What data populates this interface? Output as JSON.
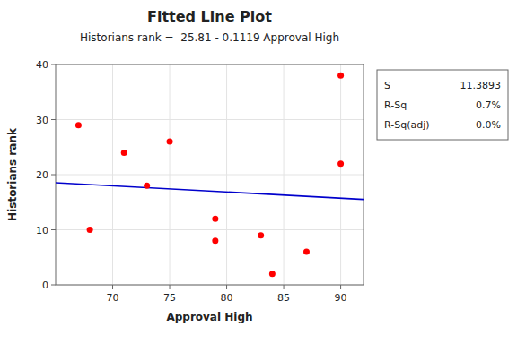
{
  "chart_data": {
    "type": "scatter",
    "title": "Fitted Line Plot",
    "subtitle": "Historians rank =  25.81 - 0.1119 Approval High",
    "xlabel": "Approval High",
    "ylabel": "Historians rank",
    "x": [
      67,
      68,
      71,
      73,
      75,
      79,
      79,
      83,
      84,
      87,
      90,
      90
    ],
    "values": [
      29,
      10,
      24,
      18,
      26,
      12,
      8,
      9,
      2,
      6,
      38,
      22
    ],
    "color": "#ff0000",
    "fit": {
      "intercept": 25.81,
      "slope": -0.1119,
      "color": "#0000cc"
    },
    "xlim": [
      65,
      92
    ],
    "ylim": [
      0,
      40
    ],
    "xticks": [
      70,
      75,
      80,
      85,
      90
    ],
    "yticks": [
      0,
      10,
      20,
      30,
      40
    ],
    "stats": [
      {
        "label": "S",
        "value": "11.3893"
      },
      {
        "label": "R-Sq",
        "value": "0.7%"
      },
      {
        "label": "R-Sq(adj)",
        "value": "0.0%"
      }
    ]
  }
}
